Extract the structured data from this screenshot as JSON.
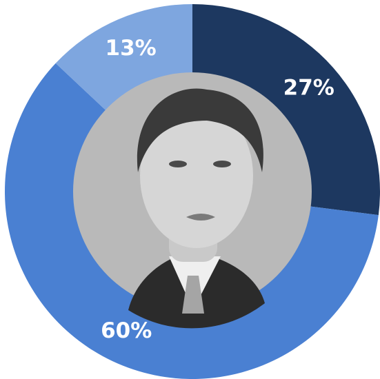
{
  "chart_data": {
    "type": "donut",
    "values": [
      27,
      60,
      13
    ],
    "value_labels": [
      "27%",
      "60%",
      "13%"
    ],
    "colors": [
      "#1d3860",
      "#4a80d2",
      "#7ea6df"
    ]
  }
}
